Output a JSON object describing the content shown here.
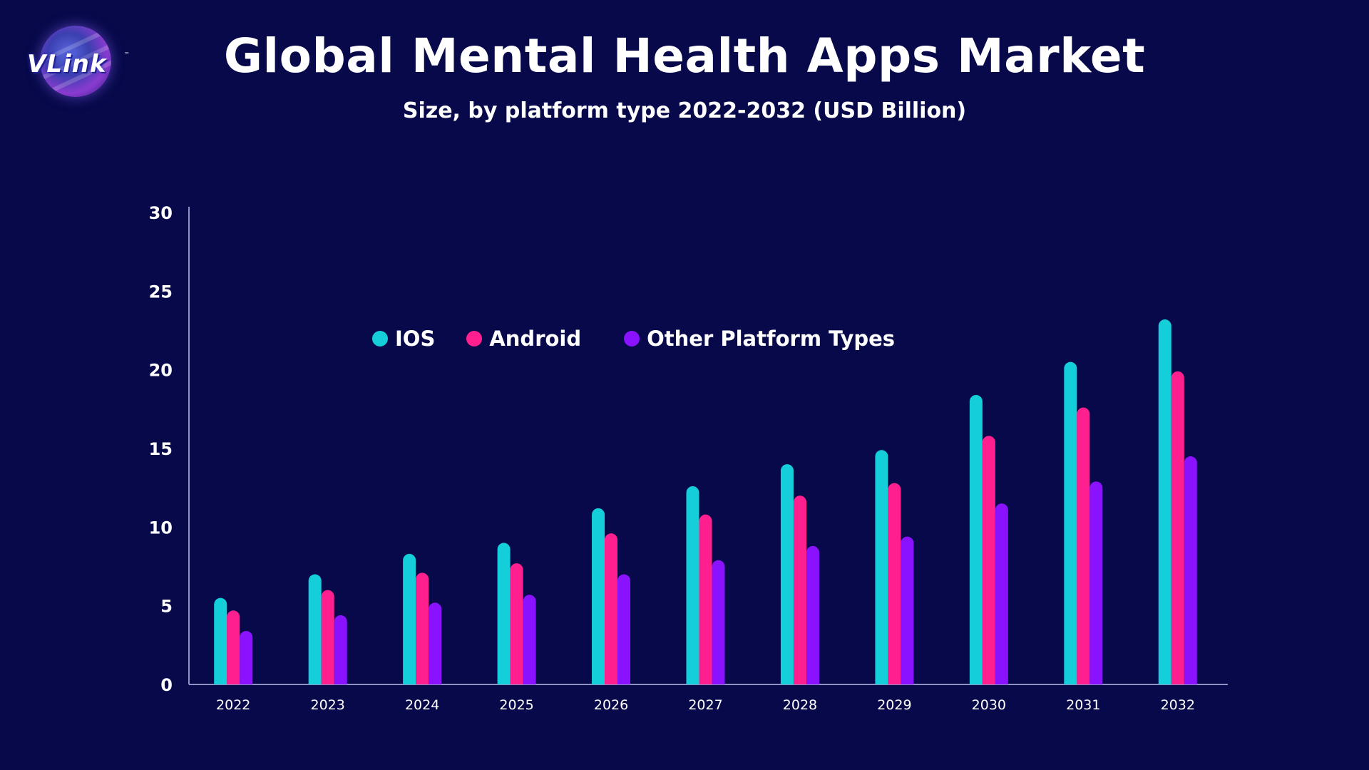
{
  "logo": {
    "text": "VLink",
    "tm": "™"
  },
  "chart_data": {
    "type": "bar",
    "title": "Global Mental Health Apps Market",
    "subtitle": "Size, by platform type 2022-2032 (USD Billion)",
    "xlabel": "",
    "ylabel": "",
    "ylim": [
      0,
      30
    ],
    "yticks": [
      "0",
      "5",
      "10",
      "15",
      "20",
      "25",
      "30"
    ],
    "grid": false,
    "legend_position": "upper-left-inside",
    "categories": [
      "2022",
      "2023",
      "2024",
      "2025",
      "2026",
      "2027",
      "2028",
      "2029",
      "2030",
      "2031",
      "2032"
    ],
    "series": [
      {
        "name": "IOS",
        "color": "#14cfd9",
        "values": [
          5.5,
          7.0,
          8.3,
          9.0,
          11.2,
          12.6,
          14.0,
          14.9,
          18.4,
          20.5,
          23.2
        ]
      },
      {
        "name": "Android",
        "color": "#ff1f8e",
        "values": [
          4.7,
          6.0,
          7.1,
          7.7,
          9.6,
          10.8,
          12.0,
          12.8,
          15.8,
          17.6,
          19.9
        ]
      },
      {
        "name": "Other Platform Types",
        "color": "#8a12ff",
        "values": [
          3.4,
          4.4,
          5.2,
          5.7,
          7.0,
          7.9,
          8.8,
          9.4,
          11.5,
          12.9,
          14.5
        ]
      }
    ]
  }
}
